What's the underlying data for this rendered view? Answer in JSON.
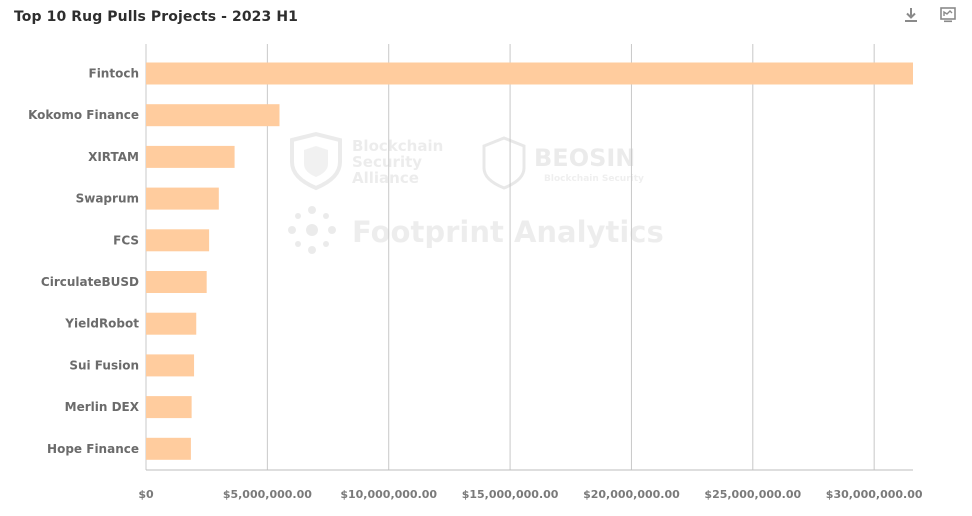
{
  "header": {
    "title": "Top 10 Rug Pulls Projects - 2023 H1",
    "download_icon": "download-icon",
    "expand_icon": "expand-icon"
  },
  "watermarks": {
    "bsa_line1": "Blockchain",
    "bsa_line2": "Security",
    "bsa_line3": "Alliance",
    "beosin_name": "BEOSIN",
    "beosin_sub": "Blockchain Security",
    "footprint": "Footprint Analytics"
  },
  "colors": {
    "bar": "#ffcc9e",
    "grid": "#c8c8c8"
  },
  "chart_data": {
    "type": "bar",
    "orientation": "horizontal",
    "title": "Top 10 Rug Pulls Projects - 2023 H1",
    "categories": [
      "Fintoch",
      "Kokomo Finance",
      "XIRTAM",
      "Swaprum",
      "FCS",
      "CirculateBUSD",
      "YieldRobot",
      "Sui Fusion",
      "Merlin DEX",
      "Hope Finance"
    ],
    "values": [
      31600000,
      5500000,
      3650000,
      3000000,
      2600000,
      2500000,
      2070000,
      1980000,
      1880000,
      1850000
    ],
    "xlim": [
      0,
      31600000
    ],
    "xticks": [
      0,
      5000000,
      10000000,
      15000000,
      20000000,
      25000000,
      30000000
    ],
    "xtick_labels": [
      "$0",
      "$5,000,000.00",
      "$10,000,000.00",
      "$15,000,000.00",
      "$20,000,000.00",
      "$25,000,000.00",
      "$30,000,000.00"
    ],
    "grid": true,
    "legend": "none"
  }
}
